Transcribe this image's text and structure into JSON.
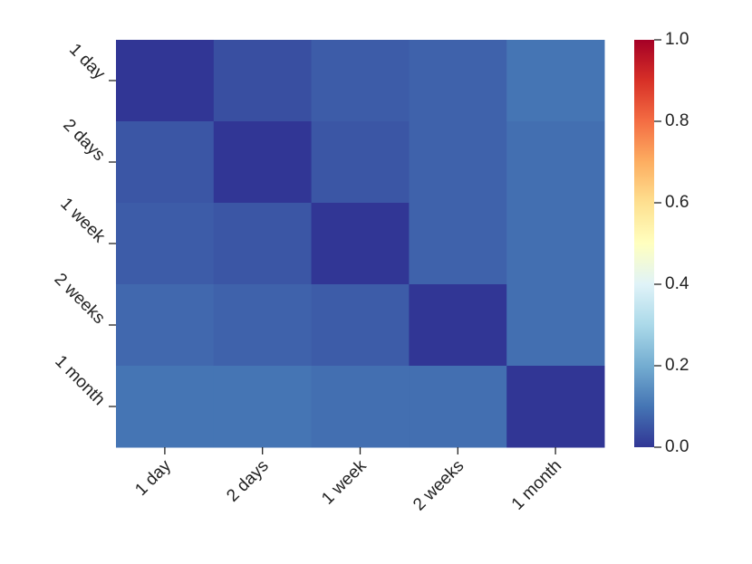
{
  "chart_data": {
    "type": "heatmap",
    "x_categories": [
      "1 day",
      "2 days",
      "1 week",
      "2 weeks",
      "1 month"
    ],
    "y_categories": [
      "1 day",
      "2 days",
      "1 week",
      "2 weeks",
      "1 month"
    ],
    "values": [
      [
        0,
        0.04,
        0.06,
        0.07,
        0.1
      ],
      [
        0.05,
        0,
        0.05,
        0.07,
        0.09
      ],
      [
        0.06,
        0.05,
        0,
        0.07,
        0.09
      ],
      [
        0.08,
        0.07,
        0.06,
        0,
        0.09
      ],
      [
        0.1,
        0.1,
        0.09,
        0.09,
        0
      ]
    ],
    "colormap": "RdYlBu_r",
    "clim": [
      0,
      1
    ],
    "cticks": [
      {
        "value": 0,
        "label": "0.0"
      },
      0.2,
      0.4,
      0.6,
      0.8,
      {
        "value": 1,
        "label": "1.0"
      }
    ]
  }
}
